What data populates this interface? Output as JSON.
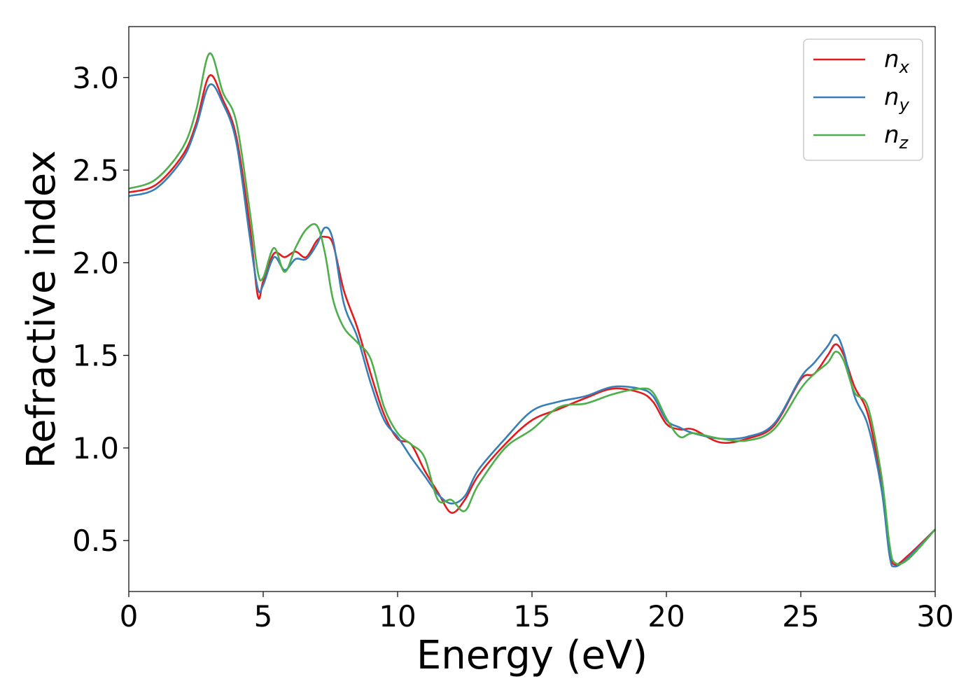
{
  "chart_data": {
    "type": "line",
    "xlabel": "Energy (eV)",
    "ylabel": "Refractive index",
    "xlim": [
      0,
      30
    ],
    "ylim": [
      0.225,
      3.275
    ],
    "xticks": [
      0,
      5,
      10,
      15,
      20,
      25,
      30
    ],
    "xtick_labels": [
      "0",
      "5",
      "10",
      "15",
      "20",
      "25",
      "30"
    ],
    "yticks": [
      0.5,
      1.0,
      1.5,
      2.0,
      2.5,
      3.0
    ],
    "ytick_labels": [
      "0.5",
      "1.0",
      "1.5",
      "2.0",
      "2.5",
      "3.0"
    ],
    "grid": false,
    "legend_position": "top-right",
    "series": [
      {
        "name": "n_x",
        "legend_base": "n",
        "legend_sub": "x",
        "color": "#e41a1c",
        "x": [
          0,
          1,
          2,
          2.5,
          3.0,
          3.5,
          4.0,
          4.5,
          4.8,
          5.0,
          5.4,
          5.8,
          6.2,
          6.6,
          7.0,
          7.3,
          7.6,
          8.0,
          8.5,
          9.0,
          9.5,
          10.0,
          10.5,
          11.0,
          11.5,
          12.0,
          12.5,
          13.0,
          14.0,
          15.0,
          16.0,
          17.0,
          18.0,
          19.0,
          19.5,
          20.0,
          20.5,
          21.0,
          22.0,
          23.0,
          24.0,
          25.0,
          25.5,
          26.0,
          26.3,
          26.6,
          27.0,
          27.5,
          28.0,
          28.3,
          28.5,
          29.0,
          30.0
        ],
        "y": [
          2.38,
          2.42,
          2.58,
          2.75,
          3.01,
          2.88,
          2.68,
          2.2,
          1.82,
          1.9,
          2.05,
          2.03,
          2.06,
          2.03,
          2.12,
          2.14,
          2.1,
          1.85,
          1.65,
          1.4,
          1.18,
          1.05,
          1.02,
          0.88,
          0.76,
          0.65,
          0.72,
          0.85,
          1.02,
          1.15,
          1.21,
          1.27,
          1.32,
          1.3,
          1.25,
          1.13,
          1.1,
          1.1,
          1.03,
          1.05,
          1.12,
          1.37,
          1.4,
          1.5,
          1.56,
          1.5,
          1.33,
          1.18,
          0.8,
          0.45,
          0.37,
          0.42,
          0.56
        ]
      },
      {
        "name": "n_y",
        "legend_base": "n",
        "legend_sub": "y",
        "color": "#377eb8",
        "x": [
          0,
          1,
          2,
          2.5,
          3.0,
          3.5,
          4.0,
          4.5,
          4.8,
          5.0,
          5.4,
          5.8,
          6.2,
          6.6,
          7.0,
          7.3,
          7.6,
          8.0,
          8.5,
          9.0,
          9.5,
          10.0,
          10.5,
          11.0,
          11.5,
          12.0,
          12.5,
          13.0,
          14.0,
          15.0,
          16.0,
          17.0,
          18.0,
          19.0,
          19.5,
          20.0,
          20.5,
          21.0,
          22.0,
          23.0,
          24.0,
          25.0,
          25.5,
          26.0,
          26.3,
          26.6,
          27.0,
          27.5,
          28.0,
          28.3,
          28.5,
          29.0,
          30.0
        ],
        "y": [
          2.36,
          2.4,
          2.56,
          2.73,
          2.96,
          2.86,
          2.65,
          2.14,
          1.86,
          1.88,
          2.03,
          1.96,
          2.02,
          2.02,
          2.1,
          2.19,
          2.12,
          1.78,
          1.6,
          1.35,
          1.15,
          1.06,
          0.95,
          0.85,
          0.75,
          0.7,
          0.74,
          0.88,
          1.05,
          1.2,
          1.25,
          1.28,
          1.33,
          1.32,
          1.28,
          1.15,
          1.11,
          1.08,
          1.05,
          1.06,
          1.13,
          1.38,
          1.46,
          1.55,
          1.61,
          1.52,
          1.28,
          1.12,
          0.78,
          0.42,
          0.36,
          0.41,
          0.56
        ]
      },
      {
        "name": "n_z",
        "legend_base": "n",
        "legend_sub": "z",
        "color": "#4daf4a",
        "x": [
          0,
          1,
          2,
          2.5,
          3.0,
          3.5,
          4.0,
          4.5,
          4.8,
          5.0,
          5.4,
          5.8,
          6.2,
          6.6,
          7.0,
          7.3,
          7.6,
          8.0,
          8.5,
          9.0,
          9.5,
          10.0,
          10.5,
          11.0,
          11.5,
          12.0,
          12.5,
          13.0,
          14.0,
          15.0,
          16.0,
          17.0,
          18.0,
          19.0,
          19.5,
          20.0,
          20.5,
          21.0,
          22.0,
          23.0,
          24.0,
          25.0,
          25.5,
          26.0,
          26.3,
          26.6,
          27.0,
          27.5,
          28.0,
          28.3,
          28.5,
          29.0,
          30.0
        ],
        "y": [
          2.4,
          2.45,
          2.62,
          2.82,
          3.13,
          2.92,
          2.76,
          2.28,
          1.95,
          1.92,
          2.08,
          1.95,
          2.08,
          2.18,
          2.2,
          2.05,
          1.8,
          1.65,
          1.57,
          1.48,
          1.22,
          1.08,
          1.02,
          0.95,
          0.72,
          0.72,
          0.66,
          0.8,
          1.0,
          1.1,
          1.22,
          1.24,
          1.29,
          1.32,
          1.3,
          1.16,
          1.06,
          1.08,
          1.05,
          1.04,
          1.1,
          1.32,
          1.4,
          1.46,
          1.52,
          1.47,
          1.3,
          1.22,
          0.85,
          0.48,
          0.38,
          0.4,
          0.56
        ]
      }
    ]
  }
}
